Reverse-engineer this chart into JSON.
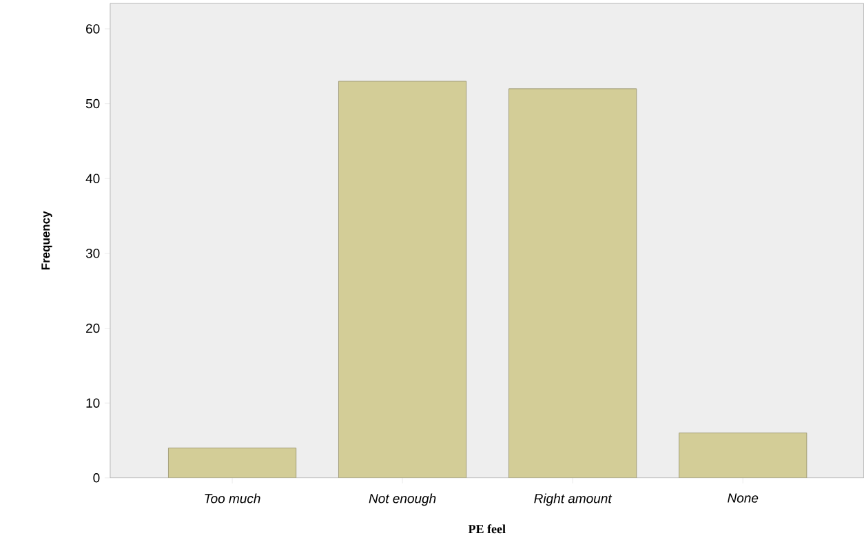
{
  "chart_data": {
    "type": "bar",
    "xlabel": "PE feel",
    "ylabel": "Frequency",
    "categories": [
      "Too much",
      "Not enough",
      "Right amount",
      "None"
    ],
    "values": [
      4,
      53,
      52,
      6
    ],
    "color": "#d3cd97",
    "ylim": [
      0,
      63.4
    ],
    "yticks": [
      0,
      10,
      20,
      30,
      40,
      50,
      60
    ]
  }
}
